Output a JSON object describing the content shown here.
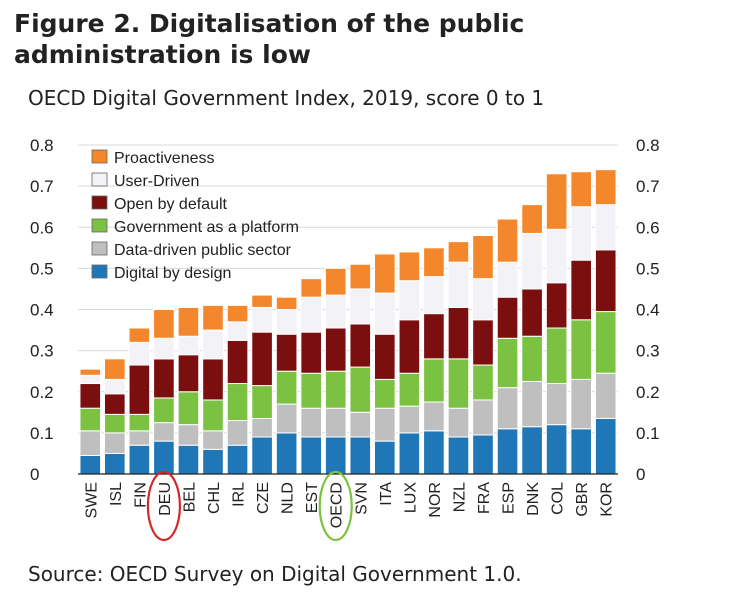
{
  "title": "Figure 2. Digitalisation of the public administration is low",
  "subtitle": "OECD Digital Government Index, 2019, score 0 to 1",
  "source": "Source: OECD Survey on Digital Government 1.0.",
  "chart_data": {
    "type": "bar",
    "stacked": true,
    "categories": [
      "SWE",
      "ISL",
      "FIN",
      "DEU",
      "BEL",
      "CHL",
      "IRL",
      "CZE",
      "NLD",
      "EST",
      "OECD",
      "SVN",
      "ITA",
      "LUX",
      "NOR",
      "NZL",
      "FRA",
      "ESP",
      "DNK",
      "COL",
      "GBR",
      "KOR"
    ],
    "highlighted": [
      {
        "category": "DEU",
        "color": "#d62728"
      },
      {
        "category": "OECD",
        "color": "#7cc242"
      }
    ],
    "yticks": [
      "0",
      "0.1",
      "0.2",
      "0.3",
      "0.4",
      "0.5",
      "0.6",
      "0.7",
      "0.8"
    ],
    "ylim": [
      0,
      0.8
    ],
    "dual_y_axis": true,
    "legend_position": "top-left",
    "series": [
      {
        "name": "Digital by design",
        "color": "#1f77b8",
        "values": [
          0.045,
          0.05,
          0.07,
          0.08,
          0.07,
          0.06,
          0.07,
          0.09,
          0.1,
          0.09,
          0.09,
          0.09,
          0.08,
          0.1,
          0.105,
          0.09,
          0.095,
          0.11,
          0.115,
          0.12,
          0.11,
          0.135
        ]
      },
      {
        "name": "Data-driven public sector",
        "color": "#bfbfbf",
        "values": [
          0.06,
          0.05,
          0.035,
          0.045,
          0.05,
          0.045,
          0.06,
          0.045,
          0.07,
          0.07,
          0.07,
          0.06,
          0.08,
          0.065,
          0.07,
          0.07,
          0.085,
          0.1,
          0.11,
          0.1,
          0.12,
          0.11
        ]
      },
      {
        "name": "Government as a platform",
        "color": "#7cc242",
        "values": [
          0.055,
          0.045,
          0.04,
          0.06,
          0.08,
          0.075,
          0.09,
          0.08,
          0.08,
          0.085,
          0.09,
          0.11,
          0.07,
          0.08,
          0.105,
          0.12,
          0.085,
          0.12,
          0.11,
          0.135,
          0.145,
          0.15
        ]
      },
      {
        "name": "Open by default",
        "color": "#7b0f0f",
        "values": [
          0.06,
          0.05,
          0.12,
          0.095,
          0.09,
          0.1,
          0.105,
          0.13,
          0.09,
          0.1,
          0.105,
          0.105,
          0.11,
          0.13,
          0.11,
          0.125,
          0.11,
          0.1,
          0.115,
          0.11,
          0.145,
          0.15
        ]
      },
      {
        "name": "User-Driven",
        "color": "#f2f2f7",
        "values": [
          0.02,
          0.035,
          0.055,
          0.05,
          0.045,
          0.07,
          0.045,
          0.06,
          0.06,
          0.085,
          0.08,
          0.085,
          0.1,
          0.095,
          0.09,
          0.11,
          0.1,
          0.085,
          0.135,
          0.13,
          0.13,
          0.11
        ]
      },
      {
        "name": "Proactiveness",
        "color": "#f4872b",
        "values": [
          0.015,
          0.05,
          0.035,
          0.07,
          0.07,
          0.06,
          0.04,
          0.03,
          0.03,
          0.045,
          0.065,
          0.06,
          0.095,
          0.07,
          0.07,
          0.05,
          0.105,
          0.105,
          0.07,
          0.135,
          0.085,
          0.085
        ]
      }
    ]
  }
}
